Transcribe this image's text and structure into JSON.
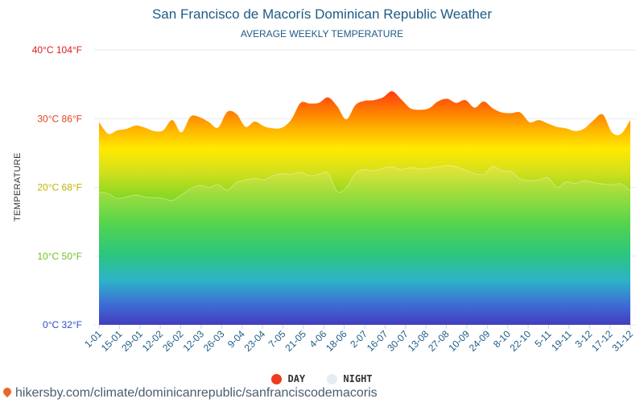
{
  "title": "San Francisco de Macorís Dominican Republic Weather",
  "subtitle": "AVERAGE WEEKLY TEMPERATURE",
  "colors": {
    "day": "#ef3b1e",
    "night": "#e6ecf0",
    "title": "#1d5b86"
  },
  "legend": {
    "day_label": "DAY",
    "night_label": "NIGHT"
  },
  "source": "hikersby.com/climate/dominicanrepublic/sanfranciscodemacoris",
  "chart_data": {
    "type": "area",
    "title": "AVERAGE WEEKLY TEMPERATURE",
    "ylabel": "TEMPERATURE",
    "xlabel": "",
    "ylim": [
      0,
      40
    ],
    "grid": true,
    "legend_position": "bottom",
    "y_ticks": [
      {
        "value": 0,
        "label": "0°C 32°F",
        "color": "#2d4fc9"
      },
      {
        "value": 10,
        "label": "10°C 50°F",
        "color": "#6fc123"
      },
      {
        "value": 20,
        "label": "20°C 68°F",
        "color": "#c4b400"
      },
      {
        "value": 30,
        "label": "30°C 86°F",
        "color": "#e8401e"
      },
      {
        "value": 40,
        "label": "40°C 104°F",
        "color": "#e01b1b"
      }
    ],
    "x_tick_labels": [
      "1-01",
      "15-01",
      "29-01",
      "12-02",
      "26-02",
      "12-03",
      "26-03",
      "9-04",
      "23-04",
      "7-05",
      "21-05",
      "4-06",
      "18-06",
      "2-07",
      "16-07",
      "30-07",
      "13-08",
      "27-08",
      "10-09",
      "24-09",
      "8-10",
      "22-10",
      "5-11",
      "19-11",
      "3-12",
      "17-12",
      "31-12"
    ],
    "series": [
      {
        "name": "DAY",
        "values": [
          29.5,
          27.8,
          28.3,
          28.5,
          29.0,
          28.7,
          28.2,
          28.3,
          29.8,
          28.0,
          30.3,
          30.2,
          29.5,
          28.7,
          31.0,
          30.7,
          28.8,
          29.6,
          28.9,
          28.6,
          28.7,
          29.9,
          32.3,
          32.2,
          32.3,
          33.1,
          31.8,
          29.9,
          32.0,
          32.6,
          32.7,
          33.1,
          34.0,
          32.8,
          31.5,
          31.3,
          31.5,
          32.5,
          32.9,
          32.3,
          32.7,
          31.6,
          32.5,
          31.5,
          30.9,
          30.8,
          30.9,
          29.5,
          29.8,
          29.3,
          28.8,
          28.6,
          28.2,
          28.6,
          29.8,
          30.6,
          28.0,
          27.8,
          29.8
        ]
      },
      {
        "name": "NIGHT",
        "values": [
          19.3,
          19.1,
          18.4,
          18.6,
          18.9,
          18.6,
          18.5,
          18.4,
          18.1,
          18.9,
          19.8,
          20.3,
          20.0,
          20.4,
          19.6,
          20.7,
          21.1,
          21.3,
          21.1,
          21.7,
          22.0,
          21.9,
          22.2,
          21.7,
          21.9,
          22.1,
          19.4,
          20.0,
          22.0,
          22.6,
          22.4,
          22.8,
          23.0,
          22.6,
          22.9,
          22.7,
          22.8,
          23.0,
          23.2,
          23.0,
          22.5,
          22.0,
          21.9,
          23.0,
          22.4,
          22.3,
          21.2,
          21.0,
          21.1,
          21.4,
          20.0,
          20.8,
          20.6,
          21.0,
          20.7,
          20.5,
          20.4,
          20.5,
          19.5
        ]
      }
    ]
  }
}
